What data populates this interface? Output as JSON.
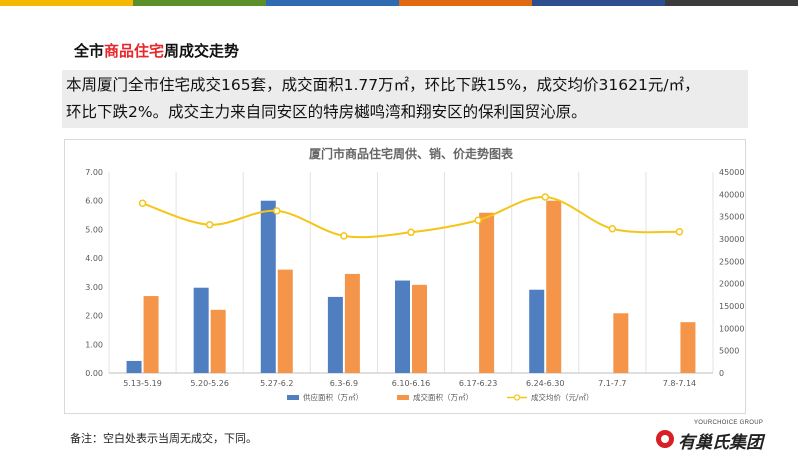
{
  "page": {
    "title_prefix": "全市",
    "title_highlight": "商品住宅",
    "title_suffix": "周成交走势",
    "summary_line1": "本周厦门全市住宅成交165套，成交面积1.77万㎡，环比下跌15%，成交均价31621元/㎡，",
    "summary_line2": "环比下跌2%。成交主力来自同安区的特房樾鸣湾和翔安区的保利国贸沁原。",
    "note": "备注：空白处表示当周无成交，下同。",
    "logo_en": "YOURCHOICE GROUP",
    "logo_cn": "有巢氏集团"
  },
  "colors": {
    "top_bar": [
      "#f5b800",
      "#5a8f2a",
      "#2f6bb0",
      "#e06a12",
      "#2e4f8f",
      "#3b3b3b"
    ],
    "supply": "#4f7fc1",
    "deal": "#f5954a",
    "price": "#f5c519",
    "title_highlight": "#e8262b"
  },
  "chart_data": {
    "type": "bar",
    "title": "厦门市商品住宅周供、销、价走势图表",
    "categories": [
      "5.13-5.19",
      "5.20-5.26",
      "5.27-6.2",
      "6.3-6.9",
      "6.10-6.16",
      "6.17-6.23",
      "6.24-6.30",
      "7.1-7.7",
      "7.8-7.14"
    ],
    "series": [
      {
        "name": "供应面积（万㎡）",
        "kind": "bar",
        "axis": "left",
        "values": [
          0.42,
          2.97,
          6.0,
          2.65,
          3.22,
          null,
          2.9,
          null,
          null
        ]
      },
      {
        "name": "成交面积（万㎡）",
        "kind": "bar",
        "axis": "left",
        "values": [
          2.68,
          2.2,
          3.6,
          3.45,
          3.07,
          5.58,
          6.0,
          2.08,
          1.77
        ]
      },
      {
        "name": "成交均价（元/㎡）",
        "kind": "line",
        "axis": "right",
        "values": [
          38000,
          33200,
          36300,
          30700,
          31500,
          34200,
          39400,
          32300,
          31621
        ]
      }
    ],
    "y_left": {
      "min": 0,
      "max": 7,
      "step": 1,
      "tick_labels": [
        "0.00",
        "1.00",
        "2.00",
        "3.00",
        "4.00",
        "5.00",
        "6.00",
        "7.00"
      ]
    },
    "y_right": {
      "min": 0,
      "max": 45000,
      "step": 5000,
      "tick_labels": [
        "0",
        "5000",
        "10000",
        "15000",
        "20000",
        "25000",
        "30000",
        "35000",
        "40000",
        "45000"
      ]
    },
    "grid": "vertical",
    "legend": "bottom"
  }
}
